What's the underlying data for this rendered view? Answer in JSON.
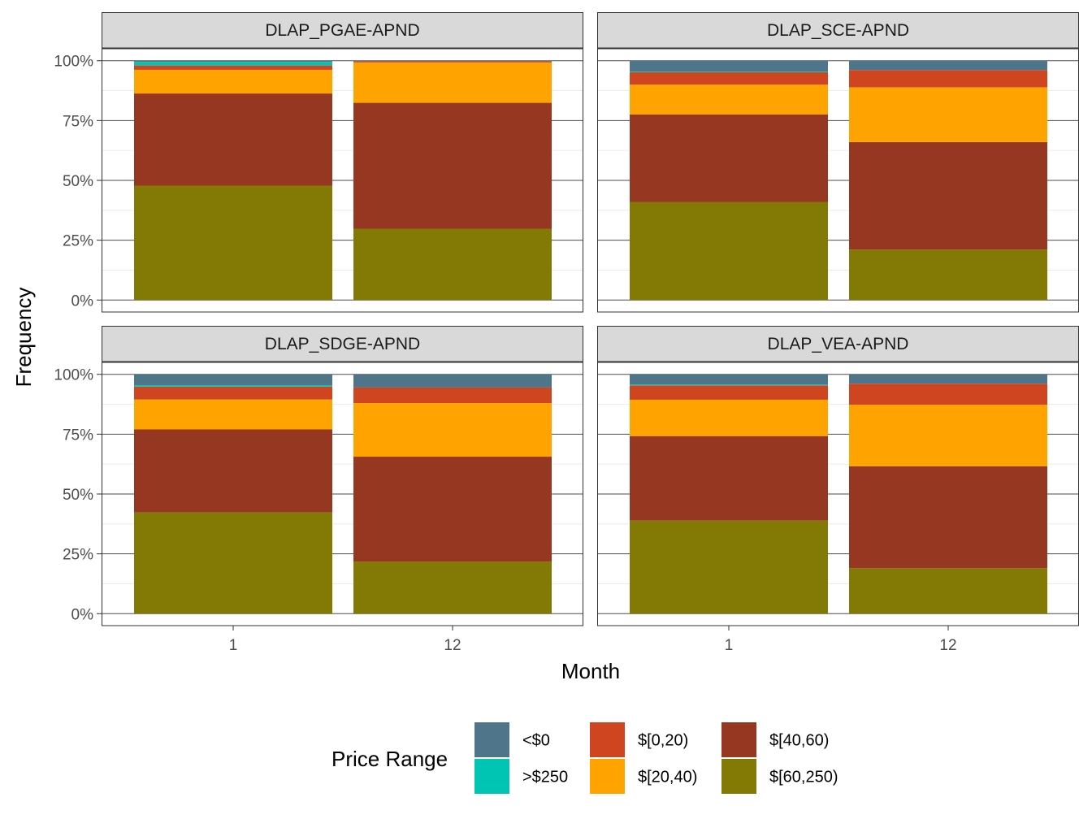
{
  "chart_data": {
    "type": "bar",
    "stacked": true,
    "xlabel": "Month",
    "ylabel": "Frequency",
    "ylim": [
      0,
      100
    ],
    "y_ticks": [
      "0%",
      "25%",
      "50%",
      "75%",
      "100%"
    ],
    "categories": [
      "1",
      "12"
    ],
    "legend": {
      "title": "Price Range",
      "placement": "bottom",
      "items": [
        {
          "label": "<$0",
          "color": "#4f758b"
        },
        {
          "label": ">$250",
          "color": "#00c5b2"
        },
        {
          "label": "$[0,20)",
          "color": "#cf4520"
        },
        {
          "label": "$[20,40)",
          "color": "#ffa300"
        },
        {
          "label": "$[40,60)",
          "color": "#963821"
        },
        {
          "label": "$[60,250)",
          "color": "#827a04"
        }
      ]
    },
    "stack_order": [
      "$[60,250)",
      "$[40,60)",
      "$[20,40)",
      "$[0,20)",
      ">$250",
      "<$0"
    ],
    "panels": [
      {
        "title": "DLAP_PGAE-APND",
        "series": [
          {
            "name": "$[60,250)",
            "values": [
              47.8,
              29.8
            ]
          },
          {
            "name": "$[40,60)",
            "values": [
              38.5,
              52.6
            ]
          },
          {
            "name": "$[20,40)",
            "values": [
              9.9,
              16.9
            ]
          },
          {
            "name": "$[0,20)",
            "values": [
              1.8,
              0.5
            ]
          },
          {
            "name": ">$250",
            "values": [
              1.5,
              0.0
            ]
          },
          {
            "name": "<$0",
            "values": [
              0.5,
              0.2
            ]
          }
        ]
      },
      {
        "title": "DLAP_SCE-APND",
        "series": [
          {
            "name": "$[60,250)",
            "values": [
              41.0,
              21.1
            ]
          },
          {
            "name": "$[40,60)",
            "values": [
              36.5,
              44.9
            ]
          },
          {
            "name": "$[20,40)",
            "values": [
              12.5,
              22.9
            ]
          },
          {
            "name": "$[0,20)",
            "values": [
              5.2,
              7.2
            ]
          },
          {
            "name": ">$250",
            "values": [
              0.3,
              0.0
            ]
          },
          {
            "name": "<$0",
            "values": [
              4.5,
              3.9
            ]
          }
        ]
      },
      {
        "title": "DLAP_SDGE-APND",
        "series": [
          {
            "name": "$[60,250)",
            "values": [
              42.3,
              21.8
            ]
          },
          {
            "name": "$[40,60)",
            "values": [
              34.7,
              43.8
            ]
          },
          {
            "name": "$[20,40)",
            "values": [
              12.5,
              22.4
            ]
          },
          {
            "name": "$[0,20)",
            "values": [
              5.4,
              6.5
            ]
          },
          {
            "name": ">$250",
            "values": [
              0.6,
              0.0
            ]
          },
          {
            "name": "<$0",
            "values": [
              4.5,
              5.5
            ]
          }
        ]
      },
      {
        "title": "DLAP_VEA-APND",
        "series": [
          {
            "name": "$[60,250)",
            "values": [
              38.9,
              19.0
            ]
          },
          {
            "name": "$[40,60)",
            "values": [
              35.3,
              42.6
            ]
          },
          {
            "name": "$[20,40)",
            "values": [
              15.2,
              25.7
            ]
          },
          {
            "name": "$[0,20)",
            "values": [
              6.0,
              8.8
            ]
          },
          {
            "name": ">$250",
            "values": [
              0.4,
              0.0
            ]
          },
          {
            "name": "<$0",
            "values": [
              4.2,
              3.9
            ]
          }
        ]
      }
    ]
  }
}
